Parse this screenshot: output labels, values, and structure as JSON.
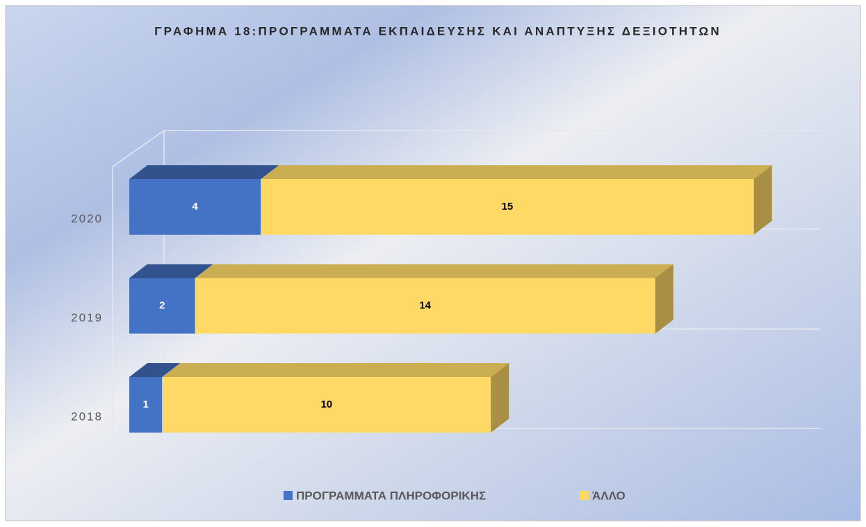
{
  "chart_data": {
    "type": "bar3d_stacked_horizontal",
    "title": "ΓΡΑΦΗΜΑ 18:ΠΡΟΓΡΑΜΜΑΤΑ ΕΚΠΑΙΔΕΥΣΗΣ ΚΑΙ ΑΝΑΠΤΥΞΗΣ ΔΕΞΙΟΤΗΤΩΝ",
    "categories": [
      "2018",
      "2019",
      "2020"
    ],
    "series": [
      {
        "name": "ΠΡΟΓΡΑΜΜΑΤΑ ΠΛΗΡΟΦΟΡΙΚΗΣ",
        "color": "#4472c4",
        "values": [
          1,
          2,
          4
        ]
      },
      {
        "name": "ΆΛΛΟ",
        "color": "#ffd966",
        "values": [
          10,
          14,
          15
        ]
      }
    ],
    "legend": "bottom"
  }
}
